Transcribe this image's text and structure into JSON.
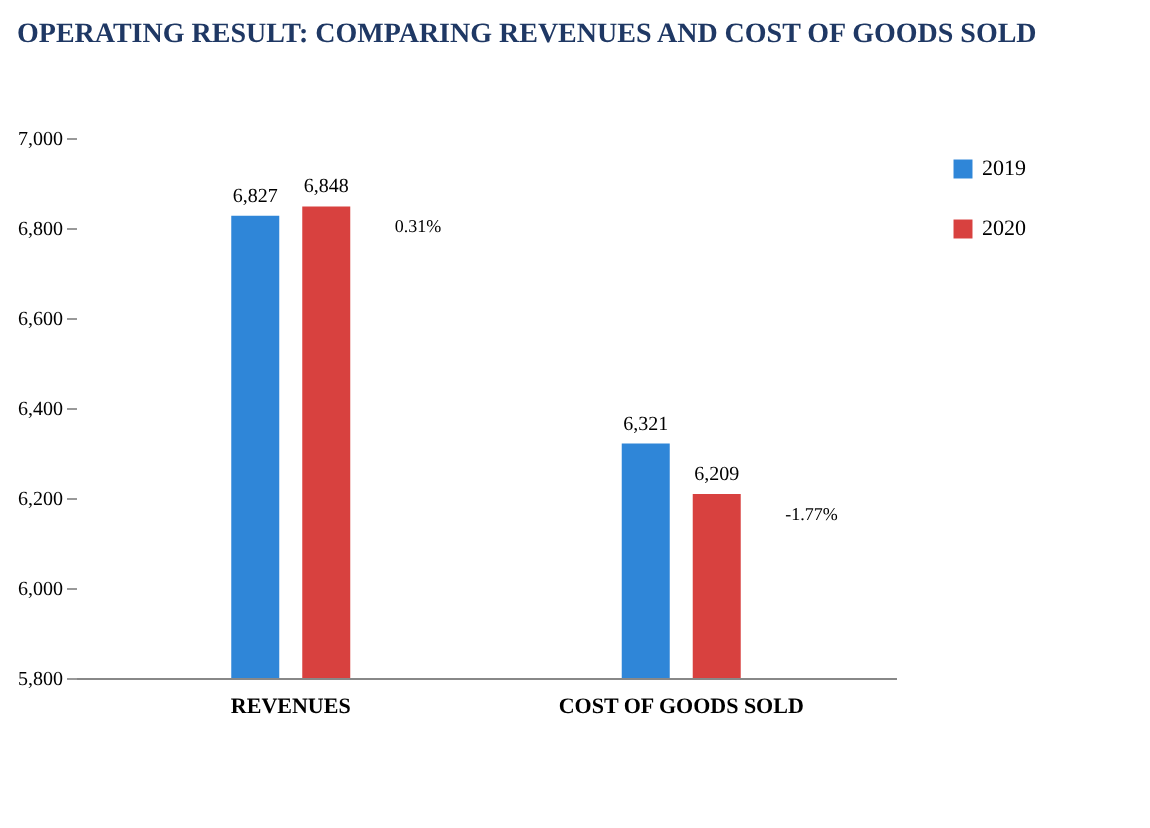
{
  "chart_data": {
    "type": "bar",
    "title": "OPERATING RESULT: COMPARING REVENUES AND COST OF GOODS SOLD",
    "categories": [
      "REVENUES",
      "COST OF GOODS SOLD"
    ],
    "series": [
      {
        "name": "2019",
        "color": "#2f86d8",
        "values": [
          6827,
          6321
        ],
        "value_labels": [
          "6,827",
          "6,321"
        ]
      },
      {
        "name": "2020",
        "color": "#d8413f",
        "values": [
          6848,
          6209
        ],
        "value_labels": [
          "6,848",
          "6,209"
        ]
      }
    ],
    "ylim": [
      5800,
      7000
    ],
    "yticks": [
      {
        "value": 5800,
        "label": "5,800"
      },
      {
        "value": 6000,
        "label": "6,000"
      },
      {
        "value": 6200,
        "label": "6,200"
      },
      {
        "value": 6400,
        "label": "6,400"
      },
      {
        "value": 6600,
        "label": "6,600"
      },
      {
        "value": 6800,
        "label": "6,800"
      },
      {
        "value": 7000,
        "label": "7,000"
      }
    ],
    "legend": "right",
    "grid": false,
    "annotations": [
      "0.31%",
      "-1.77%"
    ]
  }
}
